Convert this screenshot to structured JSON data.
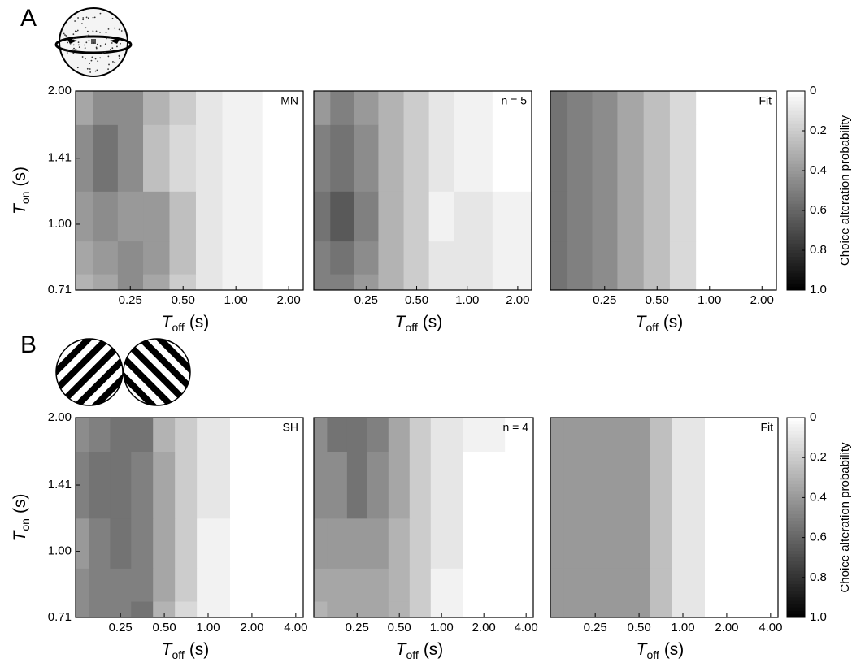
{
  "chart_data": [
    {
      "type": "contour",
      "panel_label": "A",
      "annotation": "MN",
      "x": [
        0.13,
        0.18,
        0.25,
        0.35,
        0.5,
        0.7,
        1.0,
        2.0
      ],
      "y": [
        0.71,
        0.84,
        1.0,
        1.41,
        2.0
      ],
      "z": [
        [
          0.3,
          0.35,
          0.45,
          0.35,
          0.2,
          0.1,
          0.05,
          0
        ],
        [
          0.35,
          0.4,
          0.45,
          0.4,
          0.25,
          0.1,
          0.05,
          0
        ],
        [
          0.4,
          0.45,
          0.4,
          0.4,
          0.25,
          0.1,
          0.05,
          0
        ],
        [
          0.45,
          0.55,
          0.45,
          0.25,
          0.15,
          0.1,
          0.05,
          0
        ],
        [
          0.35,
          0.45,
          0.45,
          0.3,
          0.2,
          0.1,
          0.05,
          0
        ]
      ],
      "xlim": [
        0.122,
        2.42
      ],
      "ylim": [
        0.71,
        2.0
      ],
      "xticks": [
        0.25,
        {
          "value": 0.5,
          "label": "0.50"
        },
        {
          "value": 1,
          "label": "1.00"
        },
        {
          "value": 2,
          "label": "2.00"
        }
      ],
      "yticks": [
        0.71,
        {
          "value": 1,
          "label": "1.00"
        },
        1.41,
        {
          "value": 2,
          "label": "2.00"
        }
      ],
      "xlabel": {
        "symbol": "T",
        "subscript": "off",
        "unit": "(s)"
      },
      "ylabel": {
        "symbol": "T",
        "subscript": "on",
        "unit": "(s)"
      }
    },
    {
      "type": "contour",
      "annotation": "n = 5",
      "x": [
        0.13,
        0.18,
        0.25,
        0.35,
        0.5,
        0.7,
        1.0,
        2.0
      ],
      "y": [
        0.71,
        0.84,
        1.0,
        1.41,
        2.0
      ],
      "z": [
        [
          0.5,
          0.5,
          0.4,
          0.3,
          0.2,
          0.1,
          0.1,
          0.05
        ],
        [
          0.5,
          0.55,
          0.45,
          0.3,
          0.2,
          0.1,
          0.1,
          0.05
        ],
        [
          0.55,
          0.65,
          0.5,
          0.3,
          0.2,
          0.05,
          0.1,
          0.05
        ],
        [
          0.5,
          0.55,
          0.45,
          0.3,
          0.2,
          0.1,
          0.05,
          0
        ],
        [
          0.4,
          0.5,
          0.4,
          0.3,
          0.2,
          0.1,
          0.05,
          0
        ]
      ],
      "xlim": [
        0.122,
        2.42
      ],
      "ylim": [
        0.71,
        2.0
      ],
      "xticks": [
        0.25,
        {
          "value": 0.5,
          "label": "0.50"
        },
        {
          "value": 1,
          "label": "1.00"
        },
        {
          "value": 2,
          "label": "2.00"
        }
      ],
      "xlabel": {
        "symbol": "T",
        "subscript": "off",
        "unit": "(s)"
      }
    },
    {
      "type": "contour",
      "annotation": "Fit",
      "x": [
        0.13,
        0.18,
        0.25,
        0.35,
        0.5,
        0.7,
        1.0,
        2.0
      ],
      "y": [
        0.71,
        0.84,
        1.0,
        1.41,
        2.0
      ],
      "z": [
        [
          0.55,
          0.5,
          0.45,
          0.35,
          0.25,
          0.15,
          0,
          0
        ],
        [
          0.55,
          0.5,
          0.45,
          0.35,
          0.25,
          0.15,
          0,
          0
        ],
        [
          0.55,
          0.5,
          0.45,
          0.35,
          0.25,
          0.15,
          0,
          0
        ],
        [
          0.55,
          0.5,
          0.45,
          0.35,
          0.25,
          0.15,
          0,
          0
        ],
        [
          0.55,
          0.5,
          0.45,
          0.35,
          0.25,
          0.15,
          0,
          0
        ]
      ],
      "xlim": [
        0.122,
        2.42
      ],
      "ylim": [
        0.71,
        2.0
      ],
      "xticks": [
        0.25,
        {
          "value": 0.5,
          "label": "0.50"
        },
        {
          "value": 1,
          "label": "1.00"
        },
        {
          "value": 2,
          "label": "2.00"
        }
      ],
      "xlabel": {
        "symbol": "T",
        "subscript": "off",
        "unit": "(s)"
      },
      "colorbar": {
        "label": "Choice alteration probability",
        "lim": [
          0,
          1
        ],
        "ticks": [
          0,
          0.2,
          0.4,
          0.6,
          0.8,
          {
            "value": 1,
            "label": "1.0"
          }
        ]
      }
    },
    {
      "type": "contour",
      "panel_label": "B",
      "annotation": "SH",
      "x": [
        0.13,
        0.18,
        0.25,
        0.35,
        0.5,
        0.7,
        1.0,
        2.0,
        4.0
      ],
      "y": [
        0.71,
        0.84,
        1.0,
        1.41,
        2.0
      ],
      "z": [
        [
          0.45,
          0.5,
          0.5,
          0.55,
          0.3,
          0.15,
          0.05,
          0,
          0
        ],
        [
          0.45,
          0.5,
          0.5,
          0.5,
          0.35,
          0.2,
          0.05,
          0,
          0
        ],
        [
          0.4,
          0.5,
          0.55,
          0.5,
          0.35,
          0.2,
          0.05,
          0,
          0
        ],
        [
          0.5,
          0.55,
          0.55,
          0.5,
          0.35,
          0.2,
          0.1,
          0,
          0
        ],
        [
          0.45,
          0.5,
          0.55,
          0.55,
          0.3,
          0.2,
          0.1,
          0,
          0
        ]
      ],
      "xlim": [
        0.123,
        4.5
      ],
      "ylim": [
        0.71,
        2.0
      ],
      "xticks": [
        0.25,
        {
          "value": 0.5,
          "label": "0.50"
        },
        {
          "value": 1,
          "label": "1.00"
        },
        {
          "value": 2,
          "label": "2.00"
        },
        {
          "value": 4,
          "label": "4.00"
        }
      ],
      "yticks": [
        0.71,
        {
          "value": 1,
          "label": "1.00"
        },
        1.41,
        {
          "value": 2,
          "label": "2.00"
        }
      ],
      "xlabel": {
        "symbol": "T",
        "subscript": "off",
        "unit": "(s)"
      },
      "ylabel": {
        "symbol": "T",
        "subscript": "on",
        "unit": "(s)"
      }
    },
    {
      "type": "contour",
      "annotation": "n = 4",
      "x": [
        0.13,
        0.18,
        0.25,
        0.35,
        0.5,
        0.7,
        1.0,
        2.0,
        4.0
      ],
      "y": [
        0.71,
        0.84,
        1.0,
        1.41,
        2.0
      ],
      "z": [
        [
          0.3,
          0.35,
          0.35,
          0.35,
          0.3,
          0.2,
          0.05,
          0,
          0
        ],
        [
          0.35,
          0.35,
          0.35,
          0.35,
          0.3,
          0.2,
          0.05,
          0,
          0
        ],
        [
          0.4,
          0.4,
          0.4,
          0.4,
          0.3,
          0.2,
          0.1,
          0,
          0
        ],
        [
          0.45,
          0.45,
          0.55,
          0.45,
          0.35,
          0.2,
          0.1,
          0,
          0
        ],
        [
          0.45,
          0.55,
          0.55,
          0.5,
          0.35,
          0.2,
          0.1,
          0.05,
          0
        ]
      ],
      "xlim": [
        0.123,
        4.5
      ],
      "ylim": [
        0.71,
        2.0
      ],
      "xticks": [
        0.25,
        {
          "value": 0.5,
          "label": "0.50"
        },
        {
          "value": 1,
          "label": "1.00"
        },
        {
          "value": 2,
          "label": "2.00"
        },
        {
          "value": 4,
          "label": "4.00"
        }
      ],
      "xlabel": {
        "symbol": "T",
        "subscript": "off",
        "unit": "(s)"
      }
    },
    {
      "type": "contour",
      "annotation": "Fit",
      "x": [
        0.13,
        0.18,
        0.25,
        0.35,
        0.5,
        0.7,
        1.0,
        2.0,
        4.0
      ],
      "y": [
        0.71,
        0.84,
        1.0,
        1.41,
        2.0
      ],
      "z": [
        [
          0.4,
          0.4,
          0.4,
          0.4,
          0.4,
          0.25,
          0.1,
          0,
          0
        ],
        [
          0.4,
          0.4,
          0.4,
          0.4,
          0.4,
          0.25,
          0.1,
          0,
          0
        ],
        [
          0.4,
          0.4,
          0.4,
          0.4,
          0.4,
          0.25,
          0.1,
          0,
          0
        ],
        [
          0.4,
          0.4,
          0.4,
          0.4,
          0.4,
          0.25,
          0.1,
          0,
          0
        ],
        [
          0.4,
          0.4,
          0.4,
          0.4,
          0.4,
          0.25,
          0.1,
          0,
          0
        ]
      ],
      "xlim": [
        0.123,
        4.5
      ],
      "ylim": [
        0.71,
        2.0
      ],
      "xticks": [
        0.25,
        {
          "value": 0.5,
          "label": "0.50"
        },
        {
          "value": 1,
          "label": "1.00"
        },
        {
          "value": 2,
          "label": "2.00"
        },
        {
          "value": 4,
          "label": "4.00"
        }
      ],
      "xlabel": {
        "symbol": "T",
        "subscript": "off",
        "unit": "(s)"
      },
      "colorbar": {
        "label": "Choice alteration probability",
        "lim": [
          0,
          1
        ],
        "ticks": [
          0,
          0.2,
          0.4,
          0.6,
          0.8,
          {
            "value": 1,
            "label": "1.0"
          }
        ]
      }
    }
  ]
}
